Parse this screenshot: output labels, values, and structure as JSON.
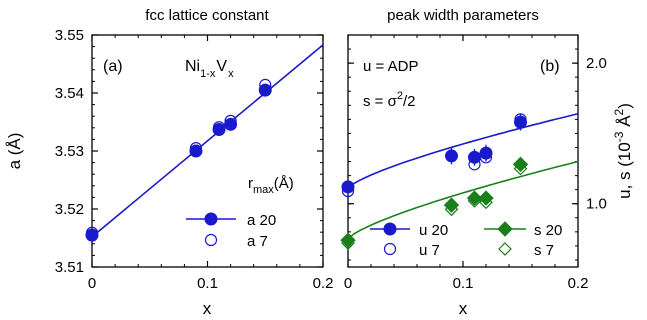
{
  "chart_data": [
    {
      "type": "scatter",
      "panel": "(a)",
      "title": "fcc lattice constant",
      "xlabel": "x",
      "ylabel": "a (Å)",
      "xlim": [
        0,
        0.2
      ],
      "ylim": [
        3.51,
        3.55
      ],
      "x_ticks": [
        0,
        0.1,
        0.2
      ],
      "x_tick_labels": [
        "0",
        "0.1",
        "0.2"
      ],
      "y_ticks": [
        3.51,
        3.52,
        3.53,
        3.54,
        3.55
      ],
      "y_tick_labels": [
        "3.51",
        "3.52",
        "3.53",
        "3.54",
        "3.55"
      ],
      "formula": {
        "main": "Ni",
        "sub1": "1-x",
        "mid": "V",
        "sub2": "x"
      },
      "legend_title": {
        "main": "r",
        "sub": "max",
        "rest": "(Å)"
      },
      "legend_placement": "bottom-right",
      "grid": false,
      "series": [
        {
          "name": "a 20",
          "marker": "filled-circle",
          "color": "#1a1acd",
          "x": [
            0,
            0.09,
            0.11,
            0.12,
            0.15
          ],
          "y": [
            3.5155,
            3.53,
            3.5337,
            3.5346,
            3.5405
          ]
        },
        {
          "name": "a 7",
          "marker": "open-circle",
          "color": "#1a1acd",
          "x": [
            0,
            0.09,
            0.11,
            0.12,
            0.15
          ],
          "y": [
            3.5159,
            3.5305,
            3.5341,
            3.5352,
            3.5414
          ]
        }
      ],
      "fit_lines": [
        {
          "color": "#1a1acd",
          "x": [
            0,
            0.2
          ],
          "y": [
            3.5152,
            3.5483
          ]
        }
      ]
    },
    {
      "type": "scatter",
      "panel": "(b)",
      "title": "peak width parameters",
      "xlabel": "x",
      "ylabel": "u, s (10⁻³ Å²)",
      "xlim": [
        0,
        0.2
      ],
      "ylim": [
        0.55,
        2.2
      ],
      "x_ticks": [
        0,
        0.1,
        0.2
      ],
      "x_tick_labels": [
        "0",
        "0.1",
        "0.2"
      ],
      "y_ticks": [
        1.0,
        2.0
      ],
      "y_tick_labels": [
        "1.0",
        "2.0"
      ],
      "annotations": [
        "u = ADP",
        "s = σ²/2"
      ],
      "legend_placement": "bottom",
      "grid": false,
      "series": [
        {
          "name": "u 20",
          "marker": "filled-circle",
          "color": "#1a1acd",
          "x": [
            0,
            0.09,
            0.11,
            0.12,
            0.15
          ],
          "y": [
            1.12,
            1.34,
            1.33,
            1.36,
            1.58
          ]
        },
        {
          "name": "u 7",
          "marker": "open-circle",
          "color": "#1a1acd",
          "x": [
            0,
            0.09,
            0.11,
            0.12,
            0.15
          ],
          "y": [
            1.09,
            1.34,
            1.28,
            1.33,
            1.6
          ]
        },
        {
          "name": "s 20",
          "marker": "filled-diamond",
          "color": "#1a7f1a",
          "x": [
            0,
            0.09,
            0.11,
            0.12,
            0.15
          ],
          "y": [
            0.74,
            0.99,
            1.04,
            1.04,
            1.28
          ]
        },
        {
          "name": "s 7",
          "marker": "open-diamond",
          "color": "#1a7f1a",
          "x": [
            0,
            0.09,
            0.11,
            0.12,
            0.15
          ],
          "y": [
            0.72,
            0.96,
            1.02,
            1.01,
            1.25
          ]
        }
      ],
      "error_bars": [
        {
          "series": "u 20",
          "x": 0.09,
          "y": 1.34,
          "err": 0.06
        },
        {
          "series": "u 20",
          "x": 0.11,
          "y": 1.33,
          "err": 0.06
        },
        {
          "series": "u 20",
          "x": 0.12,
          "y": 1.36,
          "err": 0.06
        },
        {
          "series": "u 20",
          "x": 0.15,
          "y": 1.58,
          "err": 0.06
        }
      ],
      "fit_curves": [
        {
          "series": "u",
          "color": "#1a1acd",
          "x": [
            0,
            0.2
          ],
          "y": [
            1.11,
            1.64
          ],
          "shape": "concave"
        },
        {
          "series": "s",
          "color": "#1a7f1a",
          "x": [
            0,
            0.2
          ],
          "y": [
            0.75,
            1.3
          ],
          "shape": "concave"
        }
      ]
    }
  ]
}
